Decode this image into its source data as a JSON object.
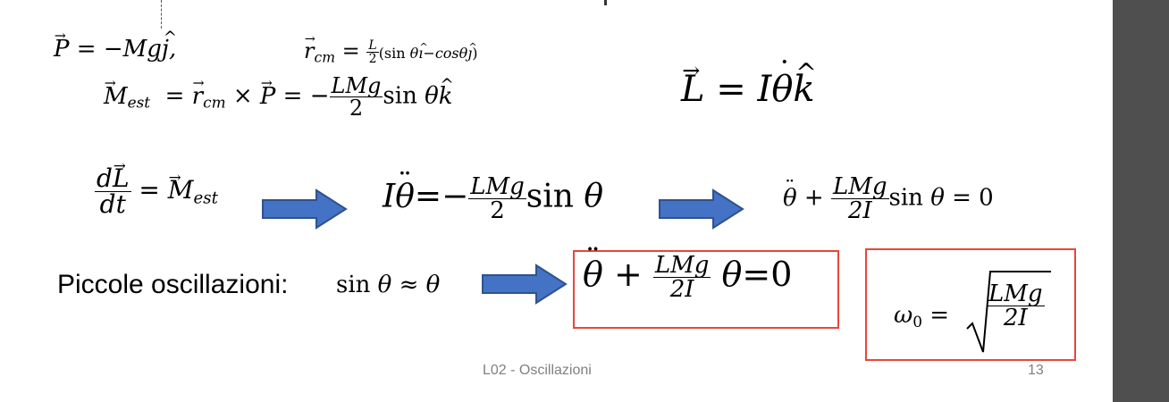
{
  "slide": {
    "eq_P": "P⃗ = −Mĝ,",
    "eq_rcm": "r⃗cm = L/2(sin θî−cosθĵ)",
    "eq_Mest": "M⃗est = r⃗cm × P⃗ = −LMg/2 sin θk̂",
    "eq_L": "L⃗ = Iθ̇k̂",
    "eq_dLdt": "dL⃗/dt = M⃗est",
    "eq_motion": "Iθ̈=−LMg/2 sin θ",
    "eq_motion2": "θ̈ + LMg/2I sin θ = 0",
    "small_osc_label": "Piccole oscillazioni:",
    "small_osc_approx": "sin θ ≈ θ",
    "eq_boxed": "θ̈ + LMg/2I θ=0",
    "eq_omega": "ω0 = √(LMg/2I)",
    "footer_title": "L02 - Oscillazioni",
    "page_number": "13"
  },
  "colors": {
    "arrow_fill": "#4472c4",
    "arrow_stroke": "#2f528f",
    "box_border": "#e8463a",
    "footer_text": "#808080",
    "scrollbar": "#4f4f4f"
  }
}
